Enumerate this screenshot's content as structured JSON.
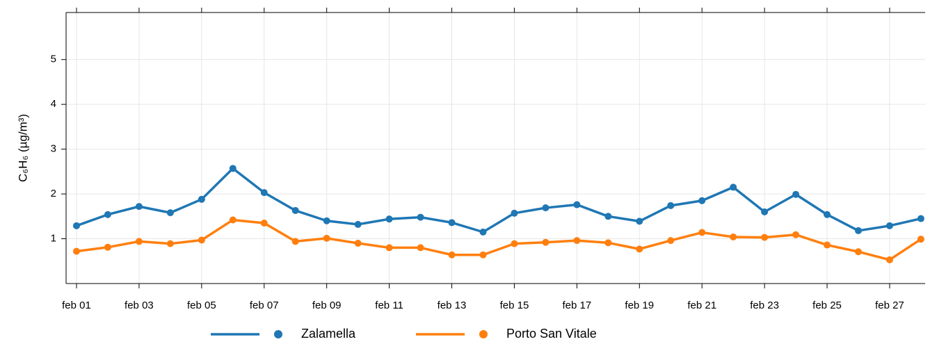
{
  "chart_data": {
    "type": "line",
    "y_label": "C₆H₆ (µg/m³)",
    "categories": [
      "feb 01",
      null,
      "feb 03",
      null,
      "feb 05",
      null,
      "feb 07",
      null,
      "feb 09",
      null,
      "feb 11",
      null,
      "feb 13",
      null,
      "feb 15",
      null,
      "feb 17",
      null,
      "feb 19",
      null,
      "feb 21",
      null,
      "feb 23",
      null,
      "feb 25",
      null,
      "feb 27",
      null
    ],
    "series": [
      {
        "name": "Zalamella",
        "color": "#1f77b4",
        "values": [
          1.29,
          1.54,
          1.72,
          1.58,
          1.88,
          2.57,
          2.03,
          1.63,
          1.4,
          1.32,
          1.44,
          1.48,
          1.36,
          1.15,
          1.57,
          1.69,
          1.76,
          1.5,
          1.39,
          1.74,
          1.85,
          2.15,
          1.6,
          1.99,
          1.54,
          1.18,
          1.29,
          1.45
        ]
      },
      {
        "name": "Porto San Vitale",
        "color": "#ff7f0e",
        "values": [
          0.72,
          0.81,
          0.94,
          0.89,
          0.97,
          1.42,
          1.35,
          0.94,
          1.01,
          0.9,
          0.8,
          0.8,
          0.64,
          0.64,
          0.89,
          0.92,
          0.96,
          0.91,
          0.77,
          0.96,
          1.14,
          1.04,
          1.03,
          1.09,
          0.86,
          0.71,
          0.53,
          0.99
        ]
      }
    ],
    "ylim": [
      0,
      6.05
    ],
    "yticks": [
      1,
      2,
      3,
      4,
      5
    ],
    "grid": true,
    "legend": "bottom"
  }
}
